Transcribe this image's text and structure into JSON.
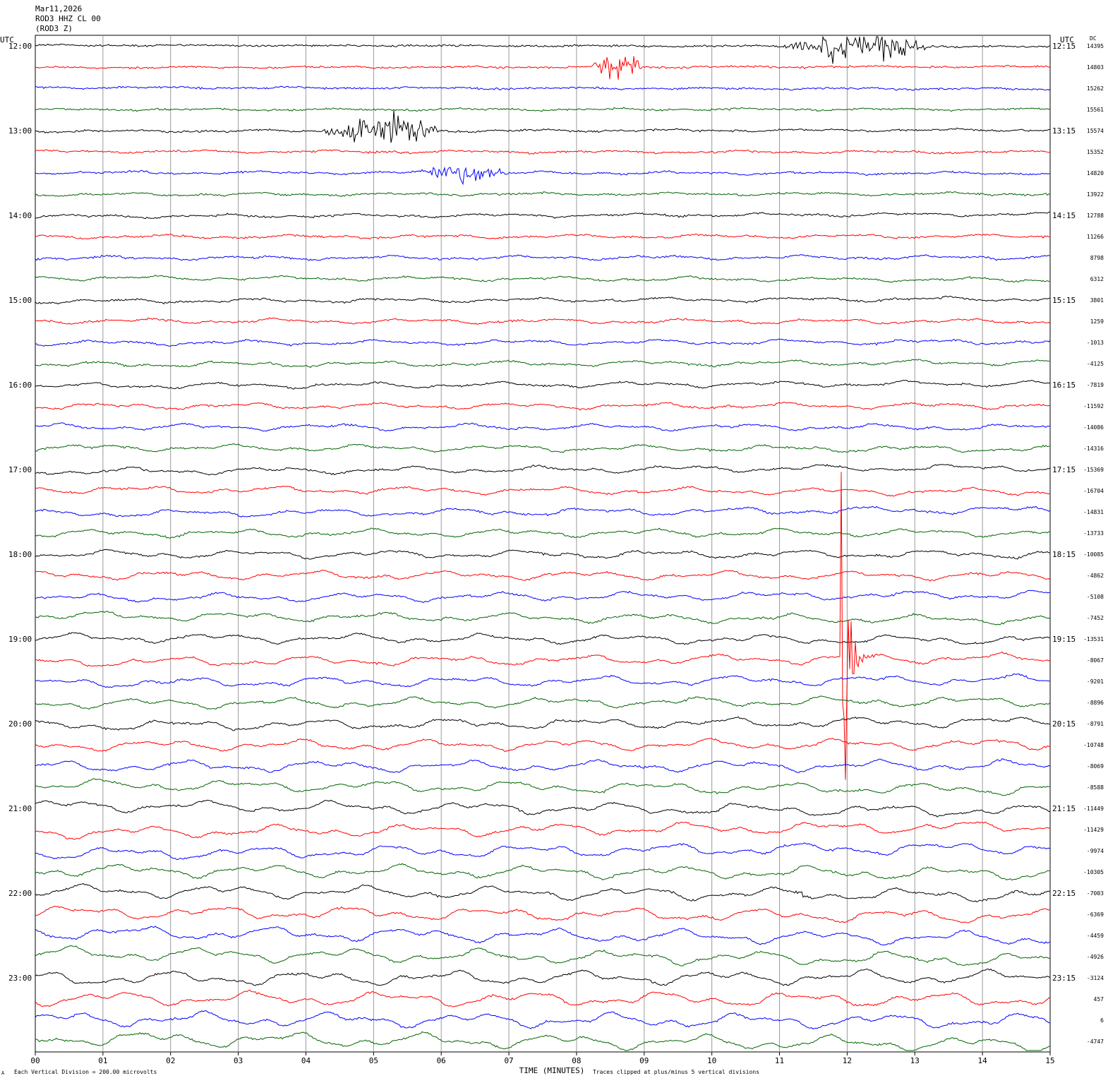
{
  "header": {
    "date": "Mar11,2026",
    "station": "ROD3 HHZ CL 00",
    "component": "(ROD3 Z)"
  },
  "chart_data": {
    "type": "line",
    "title": "",
    "xlabel": "TIME (MINUTES)",
    "ylabel": "",
    "xlim": [
      0,
      15
    ],
    "x_ticks": [
      "00",
      "01",
      "02",
      "03",
      "04",
      "05",
      "06",
      "07",
      "08",
      "09",
      "10",
      "11",
      "12",
      "13",
      "14",
      "15"
    ],
    "left_axis_title": "UTC",
    "right_axis_title": "UTC",
    "dc_title": "DC",
    "trace_colors": [
      "#000000",
      "#ff0000",
      "#0000ff",
      "#006400"
    ],
    "grid": true,
    "left_time_labels": [
      "12:00",
      "13:00",
      "14:00",
      "15:00",
      "16:00",
      "17:00",
      "18:00",
      "19:00",
      "20:00",
      "21:00",
      "22:00",
      "23:00"
    ],
    "right_time_labels": [
      "12:15",
      "13:15",
      "14:15",
      "15:15",
      "16:15",
      "17:15",
      "18:15",
      "19:15",
      "20:15",
      "21:15",
      "22:15",
      "23:15"
    ],
    "dc_offsets": [
      "14395",
      "14803",
      "15262",
      "15561",
      "15574",
      "15352",
      "14820",
      "13922",
      "12788",
      "11266",
      "8798",
      "6312",
      "3801",
      "1259",
      "-1013",
      "-4125",
      "-7819",
      "-11592",
      "-14086",
      "-14316",
      "-15369",
      "-16704",
      "-14831",
      "-13733",
      "-10085",
      "-4862",
      "-5108",
      "-7452",
      "-13531",
      "-8067",
      "-9201",
      "-8896",
      "-8791",
      "-10748",
      "-8069",
      "-8588",
      "-11449",
      "-11429",
      "-9974",
      "-10305",
      "-7003",
      "-6369",
      "-4459",
      "-4926",
      "-3124",
      "457",
      "6",
      "-4747"
    ],
    "footer": {
      "division_note": "Each Vertical Division =  200.00 microvolts",
      "clip_note": "Traces clipped at plus/minus 5 vertical divisions"
    },
    "events": [
      {
        "trace": 0,
        "start_min": 11.0,
        "end_min": 13.3,
        "amplitude": "moderate"
      },
      {
        "trace": 1,
        "start_min": 8.2,
        "end_min": 9.0,
        "amplitude": "moderate"
      },
      {
        "trace": 4,
        "start_min": 4.2,
        "end_min": 6.0,
        "amplitude": "moderate"
      },
      {
        "trace": 6,
        "start_min": 5.5,
        "end_min": 7.1,
        "amplitude": "small"
      },
      {
        "trace": 29,
        "start_min": 11.9,
        "end_min": 12.5,
        "amplitude": "large"
      },
      {
        "trace": 40,
        "start_min": 11.2,
        "end_min": 11.4,
        "amplitude": "small"
      }
    ]
  }
}
